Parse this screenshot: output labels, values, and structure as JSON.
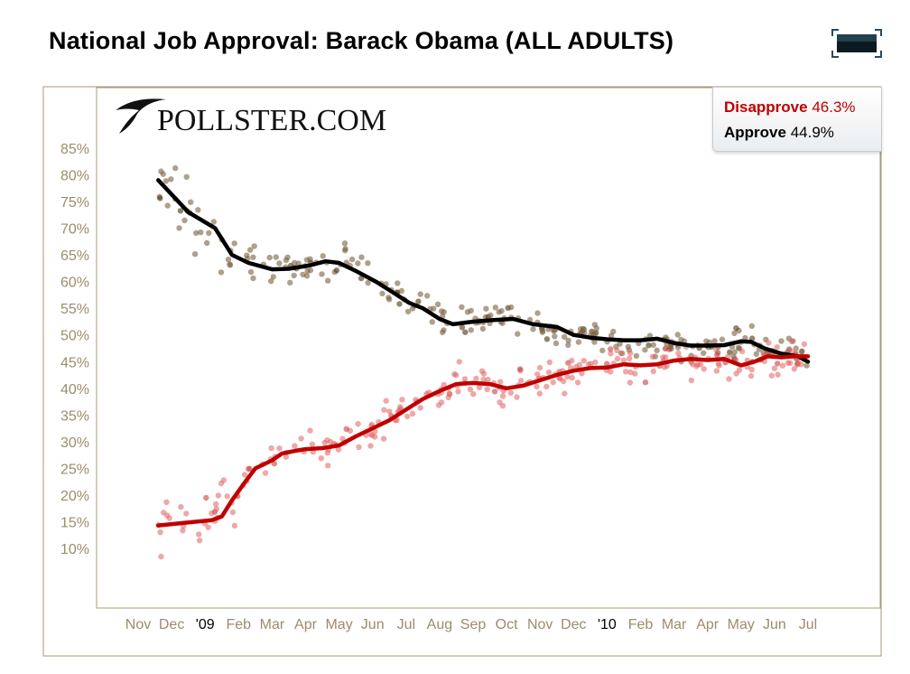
{
  "title": "National Job Approval: Barack Obama (ALL ADULTS)",
  "logo_text": "POLLSTER.COM",
  "legend": [
    {
      "name": "Disapprove",
      "value": "46.3%",
      "color": "#c00000"
    },
    {
      "name": "Approve",
      "value": "44.9%",
      "color": "#000000"
    }
  ],
  "icons": {
    "expand": "expand-icon",
    "logo": "pollster-logo-icon"
  },
  "colors": {
    "approve_dots": "#7a6040",
    "disapprove_dots": "#e06060",
    "approve_line": "#000000",
    "disapprove_line": "#c00000",
    "axis_text": "#9c8c6c",
    "frame": "#a89878"
  },
  "chart_data": {
    "type": "scatter",
    "x_tick_labels": [
      "Nov",
      "Dec",
      "'09",
      "Feb",
      "Mar",
      "Apr",
      "May",
      "Jun",
      "Jul",
      "Aug",
      "Sep",
      "Oct",
      "Nov",
      "Dec",
      "'10",
      "Feb",
      "Mar",
      "Apr",
      "May",
      "Jun",
      "Jul"
    ],
    "y_tick_labels": [
      "85%",
      "80%",
      "75%",
      "70%",
      "65%",
      "60%",
      "55%",
      "50%",
      "45%",
      "40%",
      "35%",
      "30%",
      "25%",
      "20%",
      "15%",
      "10%"
    ],
    "y_ticks": [
      85,
      80,
      75,
      70,
      65,
      60,
      55,
      50,
      45,
      40,
      35,
      30,
      25,
      20,
      15,
      10
    ],
    "ylim": [
      2,
      90
    ],
    "x_unit": "months since Nov 1, 2008",
    "xlim": [
      -0.5,
      20.5
    ],
    "series": [
      {
        "name": "Approve",
        "trend": [
          [
            0.6,
            79
          ],
          [
            1.5,
            73
          ],
          [
            2.3,
            70
          ],
          [
            2.8,
            65
          ],
          [
            3.3,
            63.5
          ],
          [
            4.0,
            62.3
          ],
          [
            4.5,
            62.4
          ],
          [
            5.1,
            63
          ],
          [
            5.6,
            63.8
          ],
          [
            6.0,
            63.5
          ],
          [
            6.5,
            62
          ],
          [
            7.1,
            60
          ],
          [
            7.6,
            58
          ],
          [
            8.1,
            56
          ],
          [
            8.5,
            55
          ],
          [
            9.0,
            53
          ],
          [
            9.4,
            52
          ],
          [
            10.0,
            52.5
          ],
          [
            10.6,
            52.8
          ],
          [
            11.2,
            53
          ],
          [
            11.8,
            52
          ],
          [
            12.5,
            51.5
          ],
          [
            13.0,
            50
          ],
          [
            13.5,
            49.5
          ],
          [
            14.0,
            49.2
          ],
          [
            14.5,
            49
          ],
          [
            15.0,
            49
          ],
          [
            15.5,
            49.3
          ],
          [
            16.0,
            48.5
          ],
          [
            16.5,
            48
          ],
          [
            17.0,
            48
          ],
          [
            17.5,
            48.1
          ],
          [
            18.0,
            48.8
          ],
          [
            18.3,
            48.7
          ],
          [
            18.7,
            47.5
          ],
          [
            19.2,
            46.5
          ],
          [
            19.7,
            46
          ],
          [
            20.0,
            45
          ]
        ]
      },
      {
        "name": "Disapprove",
        "trend": [
          [
            0.6,
            14.3
          ],
          [
            1.4,
            14.8
          ],
          [
            2.2,
            15.3
          ],
          [
            2.5,
            16
          ],
          [
            2.8,
            19
          ],
          [
            3.2,
            22.5
          ],
          [
            3.5,
            25
          ],
          [
            4.0,
            26.5
          ],
          [
            4.3,
            27.8
          ],
          [
            4.7,
            28.3
          ],
          [
            5.0,
            28.6
          ],
          [
            5.5,
            28.8
          ],
          [
            6.0,
            29.3
          ],
          [
            6.5,
            31
          ],
          [
            7.0,
            32.5
          ],
          [
            7.5,
            34
          ],
          [
            8.0,
            36
          ],
          [
            8.5,
            38
          ],
          [
            9.0,
            39.5
          ],
          [
            9.5,
            40.8
          ],
          [
            10.0,
            41
          ],
          [
            10.5,
            40.8
          ],
          [
            11.0,
            40
          ],
          [
            11.5,
            40.5
          ],
          [
            12.0,
            41.5
          ],
          [
            12.5,
            42.5
          ],
          [
            13.0,
            43.3
          ],
          [
            13.5,
            43.8
          ],
          [
            14.0,
            43.9
          ],
          [
            14.5,
            44.5
          ],
          [
            15.0,
            44.3
          ],
          [
            15.5,
            44.5
          ],
          [
            16.0,
            45.2
          ],
          [
            16.5,
            45.5
          ],
          [
            17.0,
            45.3
          ],
          [
            17.5,
            45.5
          ],
          [
            18.0,
            44.3
          ],
          [
            18.4,
            45
          ],
          [
            18.8,
            46
          ],
          [
            19.2,
            45.8
          ],
          [
            19.6,
            46
          ],
          [
            20.0,
            46
          ]
        ]
      }
    ]
  }
}
